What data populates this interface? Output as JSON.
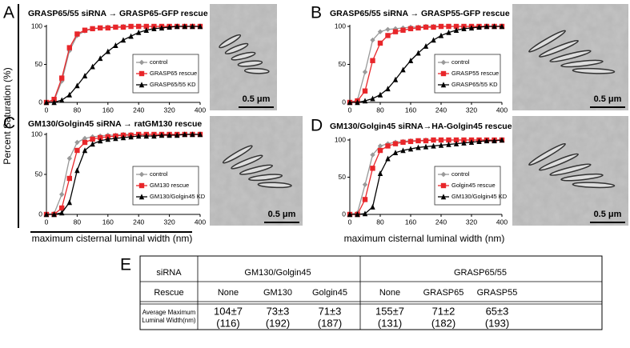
{
  "y_axis_label": "Percent Saturation (%)",
  "x_axis_label": "maximum cisternal luminal width (nm)",
  "chart_data": [
    {
      "type": "line",
      "panel": "A",
      "title": "GRASP65/55 siRNA → GRASP65-GFP rescue",
      "scale_bar": "0.5 μm",
      "legend": "lower right",
      "x": [
        0,
        20,
        40,
        60,
        80,
        100,
        120,
        140,
        160,
        180,
        200,
        220,
        240,
        260,
        280,
        300,
        320,
        340,
        360,
        380,
        400
      ],
      "xlim": [
        0,
        400
      ],
      "xticks": [
        0,
        80,
        160,
        240,
        320,
        400
      ],
      "ylim": [
        0,
        100
      ],
      "yticks": [
        0,
        50,
        100
      ],
      "series": [
        {
          "name": "control",
          "color": "#999999",
          "marker": "diamond",
          "values": [
            0,
            2,
            28,
            68,
            88,
            94,
            97,
            98,
            99,
            99,
            100,
            100,
            100,
            100,
            100,
            100,
            100,
            100,
            100,
            100,
            100
          ]
        },
        {
          "name": "GRASP65 rescue",
          "color": "#e8262a",
          "marker": "square",
          "values": [
            0,
            4,
            32,
            72,
            90,
            95,
            97,
            98,
            98,
            99,
            99,
            100,
            100,
            100,
            100,
            100,
            100,
            100,
            100,
            100,
            100
          ]
        },
        {
          "name": "GRASP65/55 KD",
          "color": "#000000",
          "marker": "triangle",
          "values": [
            0,
            0,
            3,
            10,
            22,
            35,
            47,
            58,
            67,
            75,
            82,
            87,
            92,
            95,
            97,
            98,
            99,
            100,
            100,
            100,
            100
          ]
        }
      ]
    },
    {
      "type": "line",
      "panel": "B",
      "title": "GRASP65/55 siRNA → GRASP55-GFP rescue",
      "scale_bar": "0.5 μm",
      "legend": "lower right",
      "x": [
        0,
        20,
        40,
        60,
        80,
        100,
        120,
        140,
        160,
        180,
        200,
        220,
        240,
        260,
        280,
        300,
        320,
        340,
        360,
        380,
        400
      ],
      "xlim": [
        0,
        400
      ],
      "xticks": [
        0,
        80,
        160,
        240,
        320,
        400
      ],
      "ylim": [
        0,
        100
      ],
      "yticks": [
        0,
        50,
        100
      ],
      "series": [
        {
          "name": "control",
          "color": "#999999",
          "marker": "diamond",
          "values": [
            0,
            3,
            40,
            82,
            93,
            96,
            97,
            98,
            99,
            99,
            100,
            100,
            100,
            100,
            100,
            100,
            100,
            100,
            100,
            100,
            100
          ]
        },
        {
          "name": "GRASP55 rescue",
          "color": "#e8262a",
          "marker": "square",
          "values": [
            0,
            2,
            15,
            55,
            78,
            88,
            93,
            95,
            97,
            98,
            99,
            99,
            100,
            100,
            100,
            100,
            100,
            100,
            100,
            100,
            100
          ]
        },
        {
          "name": "GRASP65/55 KD",
          "color": "#000000",
          "marker": "triangle",
          "values": [
            0,
            0,
            2,
            5,
            10,
            18,
            30,
            43,
            55,
            65,
            74,
            82,
            88,
            92,
            95,
            97,
            98,
            99,
            100,
            100,
            100
          ]
        }
      ]
    },
    {
      "type": "line",
      "panel": "C",
      "title": "GM130/Golgin45 siRNA → ratGM130 rescue",
      "scale_bar": "0.5 μm",
      "legend": "lower right",
      "x": [
        0,
        20,
        40,
        60,
        80,
        100,
        120,
        140,
        160,
        180,
        200,
        220,
        240,
        260,
        280,
        300,
        320,
        340,
        360,
        380,
        400
      ],
      "xlim": [
        0,
        400
      ],
      "xticks": [
        0,
        80,
        160,
        240,
        320,
        400
      ],
      "ylim": [
        0,
        100
      ],
      "yticks": [
        0,
        50,
        100
      ],
      "series": [
        {
          "name": "control",
          "color": "#999999",
          "marker": "diamond",
          "values": [
            0,
            1,
            25,
            70,
            90,
            95,
            97,
            98,
            99,
            99,
            100,
            100,
            100,
            100,
            100,
            100,
            100,
            100,
            100,
            100,
            100
          ]
        },
        {
          "name": "GM130 rescue",
          "color": "#e8262a",
          "marker": "square",
          "values": [
            0,
            0,
            8,
            45,
            80,
            90,
            94,
            96,
            97,
            98,
            99,
            99,
            100,
            100,
            100,
            100,
            100,
            100,
            100,
            100,
            100
          ]
        },
        {
          "name": "GM130/Golgin45 KD",
          "color": "#000000",
          "marker": "triangle",
          "values": [
            0,
            0,
            2,
            15,
            55,
            80,
            88,
            92,
            94,
            95,
            96,
            97,
            98,
            98,
            98,
            99,
            99,
            99,
            100,
            100,
            100
          ]
        }
      ]
    },
    {
      "type": "line",
      "panel": "D",
      "title": "GM130/Golgin45 siRNA→HA-Golgin45 rescue",
      "scale_bar": "0.5 μm",
      "legend": "lower right",
      "x": [
        0,
        20,
        40,
        60,
        80,
        100,
        120,
        140,
        160,
        180,
        200,
        220,
        240,
        260,
        280,
        300,
        320,
        340,
        360,
        380,
        400
      ],
      "xlim": [
        0,
        400
      ],
      "xticks": [
        0,
        80,
        160,
        240,
        320,
        400
      ],
      "ylim": [
        0,
        100
      ],
      "yticks": [
        0,
        50,
        100
      ],
      "series": [
        {
          "name": "control",
          "color": "#999999",
          "marker": "diamond",
          "values": [
            0,
            2,
            40,
            80,
            92,
            95,
            97,
            98,
            99,
            99,
            100,
            100,
            100,
            100,
            100,
            100,
            100,
            100,
            100,
            100,
            100
          ]
        },
        {
          "name": "Golgin45 rescue",
          "color": "#e8262a",
          "marker": "square",
          "values": [
            0,
            0,
            20,
            62,
            86,
            92,
            95,
            97,
            98,
            99,
            99,
            100,
            100,
            100,
            100,
            100,
            100,
            100,
            100,
            100,
            100
          ]
        },
        {
          "name": "GM130/Golgin45 KD",
          "color": "#000000",
          "marker": "triangle",
          "values": [
            0,
            0,
            1,
            10,
            55,
            75,
            83,
            86,
            88,
            90,
            91,
            92,
            93,
            94,
            95,
            96,
            97,
            98,
            99,
            99,
            100
          ]
        }
      ]
    }
  ],
  "table": {
    "panel": "E",
    "header": {
      "label": "siRNA",
      "groups": [
        "GM130/Golgin45",
        "GRASP65/55"
      ]
    },
    "rescue": {
      "label": "Rescue",
      "cells": [
        "None",
        "GM130",
        "Golgin45",
        "None",
        "GRASP65",
        "GRASP55"
      ]
    },
    "average": {
      "label": [
        "Average Maximum",
        "Luminal Width(nm)"
      ],
      "cells": [
        {
          "value": "104±7",
          "n": "(116)"
        },
        {
          "value": "73±3",
          "n": "(192)"
        },
        {
          "value": "71±3",
          "n": "(187)"
        },
        {
          "value": "155±7",
          "n": "(131)"
        },
        {
          "value": "71±2",
          "n": "(182)"
        },
        {
          "value": "65±3",
          "n": "(193)"
        }
      ]
    }
  }
}
